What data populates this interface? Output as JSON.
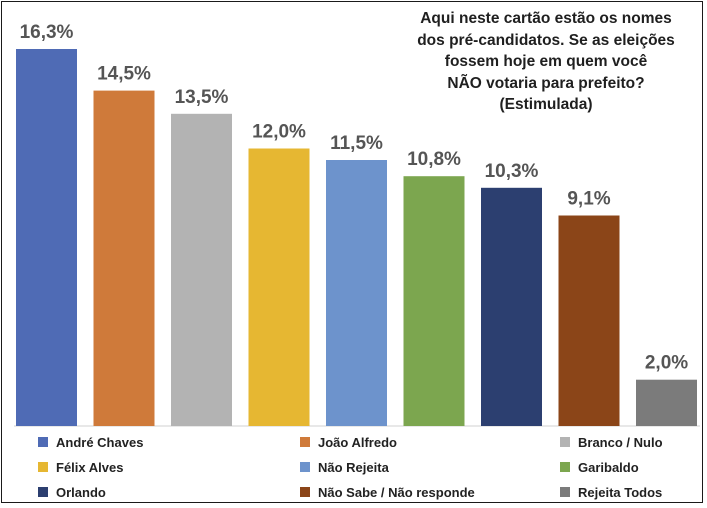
{
  "chart_data": {
    "type": "bar",
    "title_lines": [
      "Aqui neste cartão estão os nomes",
      "dos pré-candidatos. Se as eleições",
      "fossem hoje em quem você",
      "NÃO votaria para prefeito?",
      "(Estimulada)"
    ],
    "categories": [
      "André Chaves",
      "João Alfredo",
      "Branco / Nulo",
      "Félix Alves",
      "Não Rejeita",
      "Garibaldo",
      "Orlando",
      "Não Sabe / Não responde",
      "Rejeita Todos"
    ],
    "values": [
      16.3,
      14.5,
      13.5,
      12.0,
      11.5,
      10.8,
      10.3,
      9.1,
      2.0
    ],
    "value_labels": [
      "16,3%",
      "14,5%",
      "13,5%",
      "12,0%",
      "11,5%",
      "10,8%",
      "10,3%",
      "9,1%",
      "2,0%"
    ],
    "colors": [
      "#4f6bb5",
      "#cf7a3a",
      "#b3b3b3",
      "#e6b732",
      "#6d93cc",
      "#7ca64f",
      "#2c3f70",
      "#8b4518",
      "#7b7b7b"
    ],
    "ylim": [
      0,
      16.3
    ],
    "grid": false,
    "legend_position": "bottom",
    "xlabel": "",
    "ylabel": ""
  }
}
